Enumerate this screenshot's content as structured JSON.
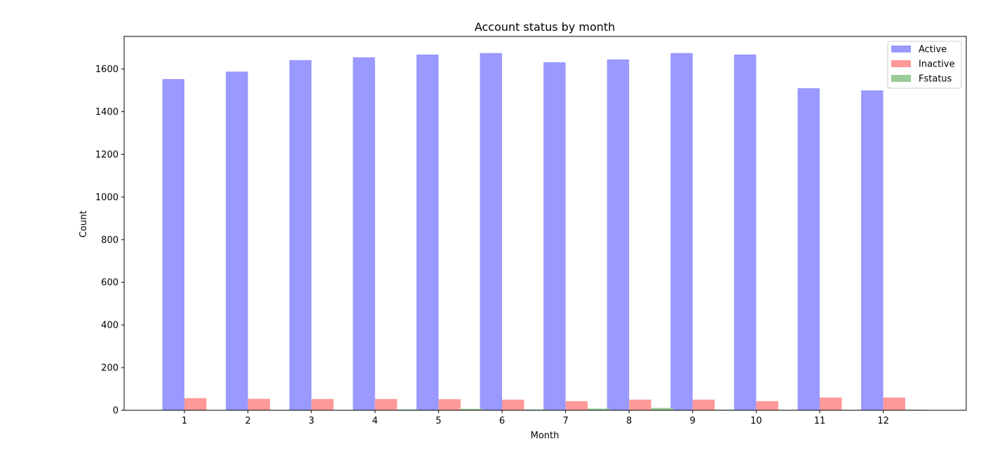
{
  "chart_data": {
    "type": "bar",
    "title": "Account status by month",
    "xlabel": "Month",
    "ylabel": "Count",
    "categories": [
      "1",
      "2",
      "3",
      "4",
      "5",
      "6",
      "7",
      "8",
      "9",
      "10",
      "11",
      "12"
    ],
    "series": [
      {
        "name": "Active",
        "color": "#9999ff",
        "values": [
          1553,
          1588,
          1642,
          1655,
          1668,
          1675,
          1632,
          1645,
          1675,
          1668,
          1510,
          1500
        ]
      },
      {
        "name": "Inactive",
        "color": "#ff9999",
        "values": [
          57,
          54,
          53,
          53,
          52,
          50,
          43,
          50,
          50,
          43,
          60,
          60
        ]
      },
      {
        "name": "Fstatus",
        "color": "#99cc99",
        "values": [
          1,
          2,
          2,
          4,
          7,
          4,
          8,
          11,
          3,
          2,
          2,
          3
        ]
      }
    ],
    "ylim": [
      0,
      1753
    ],
    "yticks": [
      0,
      200,
      400,
      600,
      800,
      1000,
      1200,
      1400,
      1600
    ],
    "grid": false,
    "legend": "top-right"
  }
}
